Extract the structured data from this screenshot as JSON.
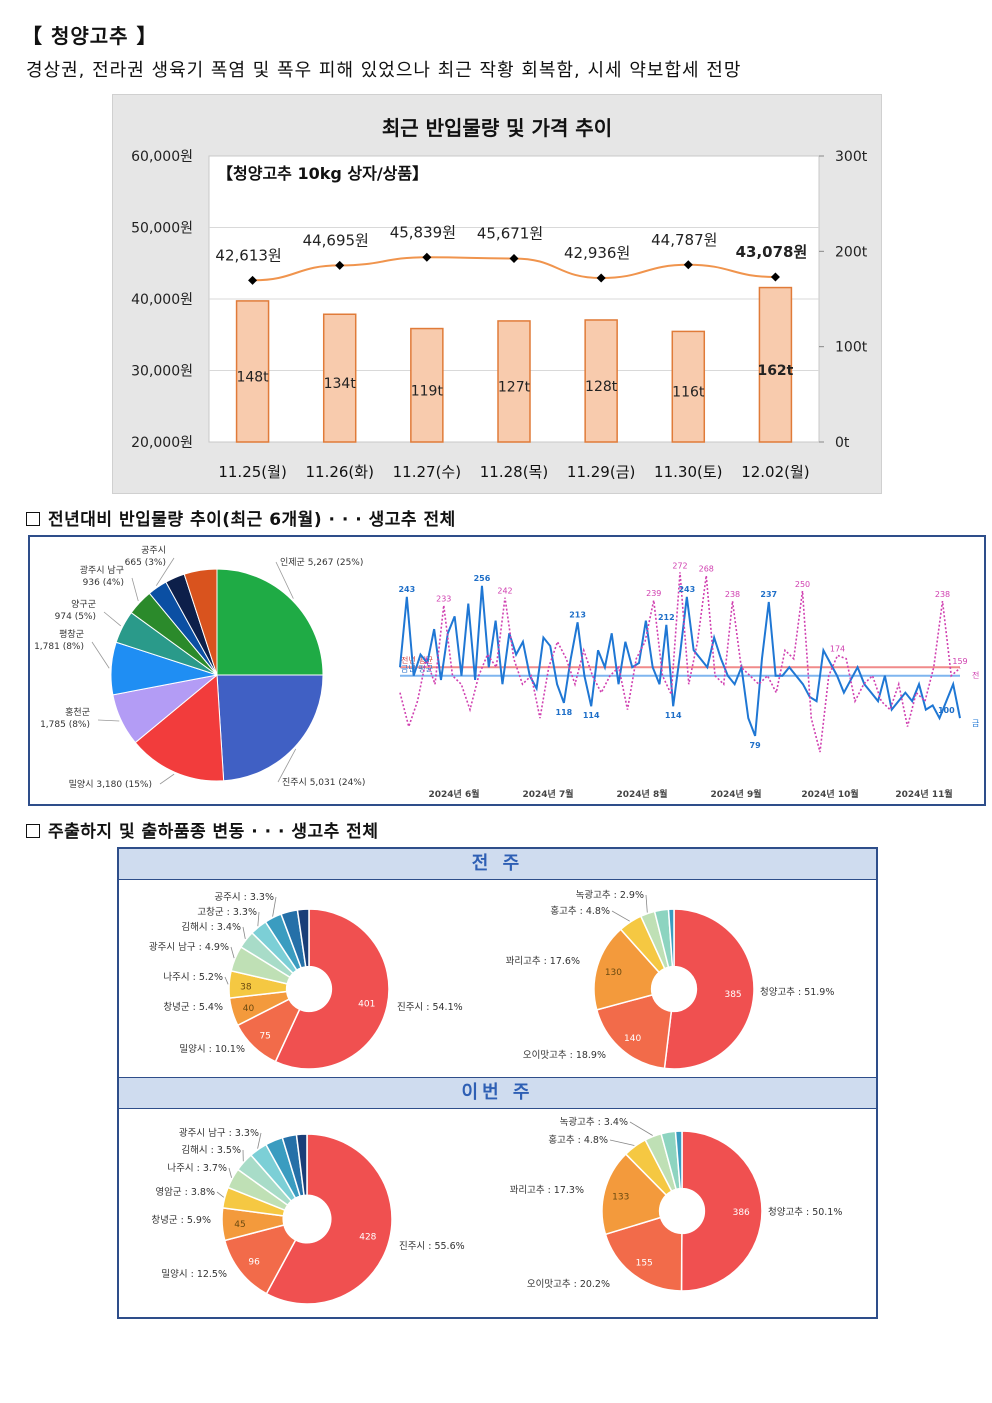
{
  "header": {
    "title": "【 청양고추 】",
    "summary": "경상권, 전라권 생육기 폭염 및 폭우 피해 있었으나 최근 작황 회복함, 시세 약보합세 전망"
  },
  "chart1": {
    "chart_data": {
      "type": "bar",
      "title": "최근 반입물량 및 가격 추이",
      "subtitle": "【청양고추 10kg 상자/상품】",
      "categories": [
        "11.25(월)",
        "11.26(화)",
        "11.27(수)",
        "11.28(목)",
        "11.29(금)",
        "11.30(토)",
        "12.02(월)"
      ],
      "volume": [
        148,
        134,
        119,
        127,
        128,
        116,
        162
      ],
      "volume_labels": [
        "148t",
        "134t",
        "119t",
        "127t",
        "128t",
        "116t",
        "162t"
      ],
      "price": [
        42613,
        44695,
        45839,
        45671,
        42936,
        44787,
        43078
      ],
      "price_labels": [
        "42,613원",
        "44,695원",
        "45,839원",
        "45,671원",
        "42,936원",
        "44,787원",
        "43,078원"
      ],
      "left_axis_ticks": [
        "60,000원",
        "50,000원",
        "40,000원",
        "30,000원",
        "20,000원"
      ],
      "right_axis_ticks": [
        "300t",
        "200t",
        "100t",
        "0t"
      ],
      "ylim_left": [
        20000,
        60000
      ],
      "ylim_right": [
        0,
        300
      ],
      "colors": {
        "bar_fill": "#f8cbad",
        "bar_stroke": "#e07b39",
        "line": "#f0944d",
        "marker": "#000000"
      },
      "highlight_last": true
    }
  },
  "section2": {
    "title": "전년대비 반입물량 추이(최근 6개월) · · · 생고추 전체",
    "pie": {
      "chart_data": {
        "type": "pie",
        "slices": [
          {
            "label": "인제군 5,267 (25%)",
            "value": 25,
            "color": "#1fab45"
          },
          {
            "label": "진주시 5,031 (24%)",
            "value": 24,
            "color": "#4060c4"
          },
          {
            "label": "밀양시 3,180 (15%)",
            "value": 15,
            "color": "#f23c3c"
          },
          {
            "label": "홍천군 1,785 (8%)",
            "value": 8,
            "color": "#b39cf5"
          },
          {
            "label": "평창군 1,781 (8%)",
            "value": 8,
            "color": "#1f8ef3"
          },
          {
            "label": "양구군 974 (5%)",
            "value": 5,
            "color": "#2a9a8a"
          },
          {
            "label": "광주시 남구 936 (4%)",
            "value": 4,
            "color": "#2b8a2b"
          },
          {
            "label": "공주시 665 (3%)",
            "value": 3,
            "color": "#0b4fa3"
          },
          {
            "label": "",
            "value": 3,
            "color": "#0d1f4a"
          },
          {
            "label": "",
            "value": 5,
            "color": "#d9531e"
          }
        ]
      }
    },
    "line": {
      "chart_data": {
        "type": "line",
        "x_labels": [
          "2024년 6월",
          "2024년 7월",
          "2024년 8월",
          "2024년 9월",
          "2024년 10월",
          "2024년 11월"
        ],
        "series": [
          {
            "name": "금년",
            "color": "#1f77d4",
            "values": [
              160,
              243,
              150,
              175,
              165,
              205,
              145,
              200,
              220,
              150,
              235,
              145,
              256,
              160,
              215,
              140,
              200,
              175,
              190,
              150,
              135,
              195,
              185,
              140,
              118,
              170,
              213,
              150,
              114,
              180,
              160,
              200,
              140,
              190,
              160,
              165,
              215,
              160,
              140,
              210,
              114,
              175,
              243,
              180,
              170,
              160,
              195,
              170,
              150,
              140,
              160,
              100,
              79,
              170,
              237,
              150,
              150,
              160,
              150,
              140,
              125,
              120,
              180,
              165,
              150,
              130,
              145,
              160,
              140,
              130,
              120,
              150,
              110,
              120,
              130,
              120,
              140,
              110,
              115,
              100,
              120,
              140,
              100
            ]
          },
          {
            "name": "전년",
            "color": "#d040b0",
            "values": [
              130,
              90,
              120,
              170,
              140,
              233,
              150,
              140,
              110,
              150,
              175,
              160,
              242,
              170,
              140,
              150,
              100,
              160,
              190,
              170,
              140,
              180,
              150,
              130,
              150,
              160,
              110,
              170,
              190,
              239,
              150,
              128,
              272,
              140,
              190,
              268,
              150,
              140,
              238,
              160,
              150,
              140,
              150,
              130,
              180,
              170,
              250,
              100,
              60,
              150,
              174,
              170,
              120,
              140,
              150,
              120,
              110,
              140,
              90,
              130,
              120,
              160,
              238,
              150,
              159
            ]
          }
        ],
        "annotations": [
          "243",
          "256",
          "213",
          "243",
          "237",
          "212",
          "118",
          "114",
          "114",
          "79",
          "100",
          "233",
          "242",
          "239",
          "272",
          "268",
          "238",
          "250",
          "238",
          "174",
          "159"
        ],
        "ref_line_labels": [
          "전년 평균",
          "금년 평균"
        ],
        "ref_values": {
          "prev_avg": 160,
          "cur_avg": 150
        }
      }
    }
  },
  "section3": {
    "title": "주출하지 및 출하품종 변동 · · · 생고추 전체",
    "band_prev": "전 주",
    "band_curr": "이번 주",
    "prev_region": {
      "chart_data": {
        "type": "pie",
        "slices": [
          {
            "label": "진주시 : 54.1%",
            "value": 54.1,
            "inner": "401",
            "color": "#f05050"
          },
          {
            "label": "밀양시 : 10.1%",
            "value": 10.1,
            "inner": "75",
            "color": "#f26b4a"
          },
          {
            "label": "창녕군 : 5.4%",
            "value": 5.4,
            "inner": "40",
            "color": "#f39a3c"
          },
          {
            "label": "나주시 : 5.2%",
            "value": 5.2,
            "inner": "38",
            "color": "#f5c842"
          },
          {
            "label": "광주시 남구 : 4.9%",
            "value": 4.9,
            "inner": "",
            "color": "#bfe0b5"
          },
          {
            "label": "김해시 : 3.4%",
            "value": 3.4,
            "inner": "",
            "color": "#a8dcc8"
          },
          {
            "label": "고창군 : 3.3%",
            "value": 3.3,
            "inner": "",
            "color": "#7ccfd6"
          },
          {
            "label": "공주시 : 3.3%",
            "value": 3.3,
            "inner": "",
            "color": "#3a9cc0"
          },
          {
            "label": "",
            "value": 3.2,
            "inner": "",
            "color": "#2570a8"
          },
          {
            "label": "",
            "value": 2.2,
            "inner": "",
            "color": "#1a3e78"
          }
        ]
      }
    },
    "prev_variety": {
      "chart_data": {
        "type": "pie",
        "slices": [
          {
            "label": "청양고추 : 51.9%",
            "value": 51.9,
            "inner": "385",
            "color": "#f05050"
          },
          {
            "label": "오이맛고추 : 18.9%",
            "value": 18.9,
            "inner": "140",
            "color": "#f26b4a"
          },
          {
            "label": "꽈리고추 : 17.6%",
            "value": 17.6,
            "inner": "130",
            "color": "#f39a3c"
          },
          {
            "label": "홍고추 : 4.8%",
            "value": 4.8,
            "inner": "",
            "color": "#f5c842"
          },
          {
            "label": "녹광고추 : 2.9%",
            "value": 2.9,
            "inner": "",
            "color": "#bfe0b5"
          },
          {
            "label": "",
            "value": 2.8,
            "inner": "",
            "color": "#8dd4c0"
          },
          {
            "label": "",
            "value": 1.1,
            "inner": "",
            "color": "#3a9cc0"
          }
        ]
      }
    },
    "curr_region": {
      "chart_data": {
        "type": "pie",
        "slices": [
          {
            "label": "진주시 : 55.6%",
            "value": 55.6,
            "inner": "428",
            "color": "#f05050"
          },
          {
            "label": "밀양시 : 12.5%",
            "value": 12.5,
            "inner": "96",
            "color": "#f26b4a"
          },
          {
            "label": "창녕군 : 5.9%",
            "value": 5.9,
            "inner": "45",
            "color": "#f39a3c"
          },
          {
            "label": "영암군 : 3.8%",
            "value": 3.8,
            "inner": "",
            "color": "#f5c842"
          },
          {
            "label": "나주시 : 3.7%",
            "value": 3.7,
            "inner": "",
            "color": "#bfe0b5"
          },
          {
            "label": "김해시 : 3.5%",
            "value": 3.5,
            "inner": "",
            "color": "#a8dcc8"
          },
          {
            "label": "광주시 남구 : 3.3%",
            "value": 3.3,
            "inner": "",
            "color": "#7ccfd6"
          },
          {
            "label": "",
            "value": 3.2,
            "inner": "",
            "color": "#3a9cc0"
          },
          {
            "label": "",
            "value": 2.6,
            "inner": "",
            "color": "#2570a8"
          },
          {
            "label": "",
            "value": 1.9,
            "inner": "",
            "color": "#1a3e78"
          }
        ]
      }
    },
    "curr_variety": {
      "chart_data": {
        "type": "pie",
        "slices": [
          {
            "label": "청양고추 : 50.1%",
            "value": 50.1,
            "inner": "386",
            "color": "#f05050"
          },
          {
            "label": "오이맛고추 : 20.2%",
            "value": 20.2,
            "inner": "155",
            "color": "#f26b4a"
          },
          {
            "label": "꽈리고추 : 17.3%",
            "value": 17.3,
            "inner": "133",
            "color": "#f39a3c"
          },
          {
            "label": "홍고추 : 4.8%",
            "value": 4.8,
            "inner": "",
            "color": "#f5c842"
          },
          {
            "label": "녹광고추 : 3.4%",
            "value": 3.4,
            "inner": "",
            "color": "#bfe0b5"
          },
          {
            "label": "",
            "value": 2.9,
            "inner": "",
            "color": "#8dd4c0"
          },
          {
            "label": "",
            "value": 1.3,
            "inner": "",
            "color": "#3a9cc0"
          }
        ]
      }
    }
  }
}
